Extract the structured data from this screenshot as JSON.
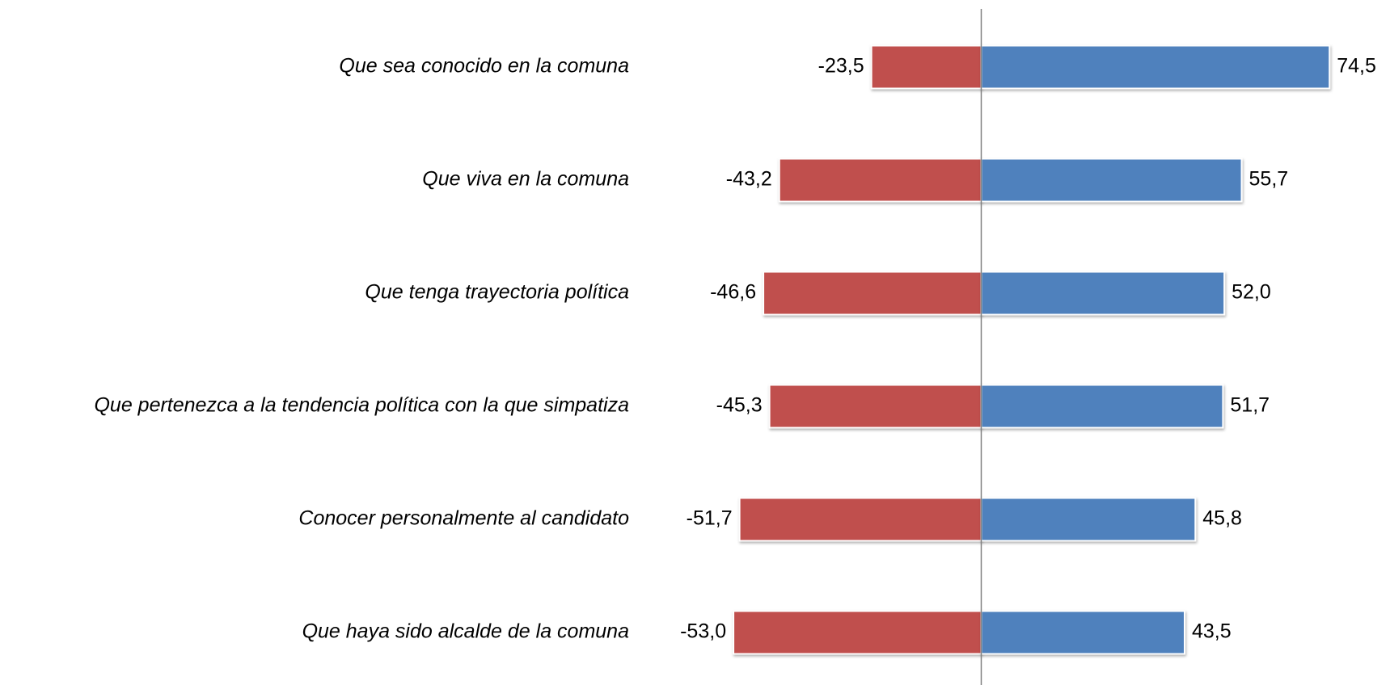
{
  "chart_data": {
    "type": "bar",
    "orientation": "horizontal",
    "categories": [
      "Que sea conocido en la comuna",
      "Que viva en la comuna",
      "Que tenga trayectoria política",
      "Que pertenezca a la tendencia política con la que simpatiza",
      "Conocer personalmente al candidato",
      "Que haya sido alcalde de la comuna"
    ],
    "series": [
      {
        "color": "#c0504d",
        "values": [
          -23.5,
          -43.2,
          -46.6,
          -45.3,
          -51.7,
          -53.0
        ],
        "value_labels": [
          "-23,5",
          "-43,2",
          "-46,6",
          "-45,3",
          "-51,7",
          "-53,0"
        ]
      },
      {
        "color": "#4f81bd",
        "values": [
          74.5,
          55.7,
          52.0,
          51.7,
          45.8,
          43.5
        ],
        "value_labels": [
          "74,5",
          "55,7",
          "52,0",
          "51,7",
          "45,8",
          "43,5"
        ]
      }
    ],
    "xlim": [
      -80,
      80
    ]
  }
}
